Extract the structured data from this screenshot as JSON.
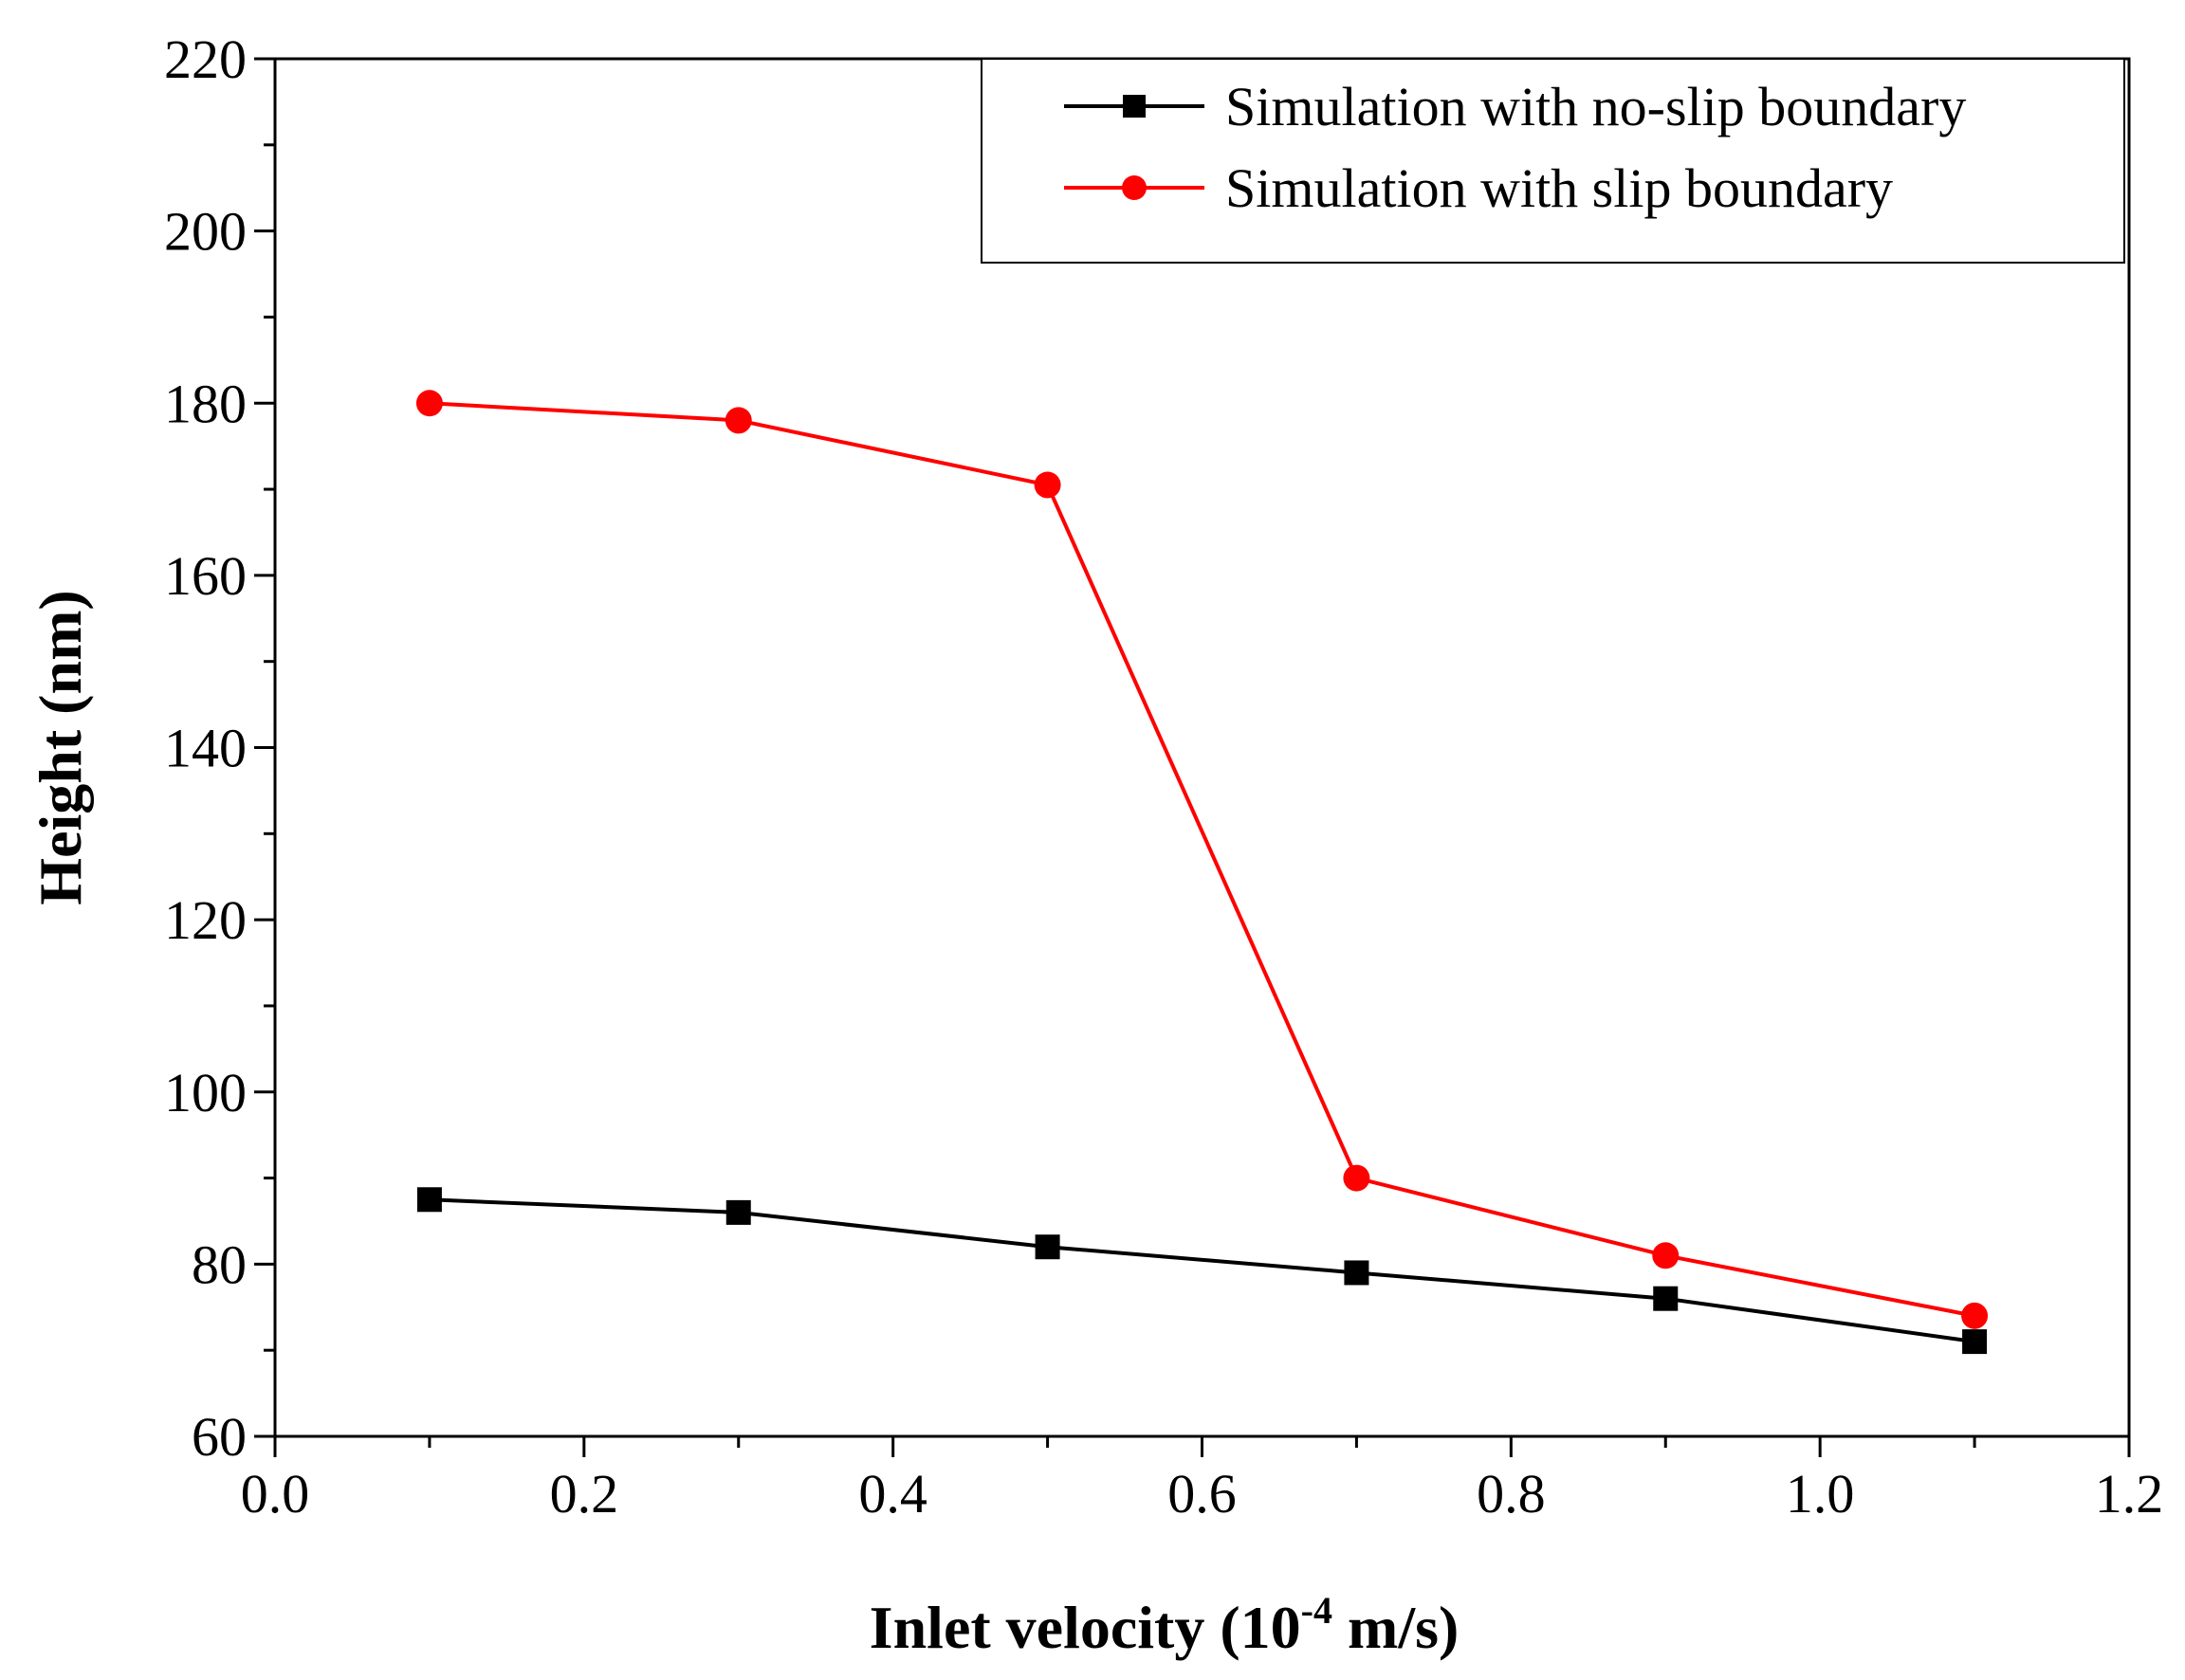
{
  "chart_data": {
    "type": "line",
    "title": "",
    "xlabel": "Inlet velocity (10",
    "xlabel_exponent": "-4",
    "xlabel_unit": " m/s)",
    "ylabel": "Height (nm)",
    "xlim": [
      0.0,
      1.2
    ],
    "ylim": [
      60,
      220
    ],
    "x_ticks": [
      0.0,
      0.2,
      0.4,
      0.6,
      0.8,
      1.0,
      1.2
    ],
    "x_tick_labels": [
      "0.0",
      "0.2",
      "0.4",
      "0.6",
      "0.8",
      "1.0",
      "1.2"
    ],
    "y_ticks": [
      60,
      80,
      100,
      120,
      140,
      160,
      180,
      200,
      220
    ],
    "y_tick_labels": [
      "60",
      "80",
      "100",
      "120",
      "140",
      "160",
      "180",
      "200",
      "220"
    ],
    "grid": false,
    "legend_position": "top-right",
    "x": [
      0.1,
      0.3,
      0.5,
      0.7,
      0.9,
      1.1
    ],
    "series": [
      {
        "name": "Simulation with no-slip boundary",
        "color": "#000000",
        "marker": "square",
        "values": [
          87.5,
          86,
          82,
          79,
          76,
          71
        ]
      },
      {
        "name": "Simulation with slip boundary",
        "color": "#ff0000",
        "marker": "circle",
        "values": [
          180,
          178,
          170.5,
          90,
          81,
          74
        ]
      }
    ]
  }
}
